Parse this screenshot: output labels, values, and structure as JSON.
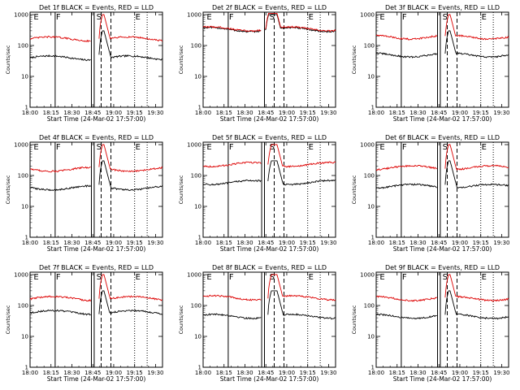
{
  "figure": {
    "common_xlabel": "Start Time (24-Mar-02 17:57:00)",
    "common_ylabel": "Counts/sec",
    "x_tick_labels": [
      "18:00",
      "18:15",
      "18:30",
      "18:45",
      "19:00",
      "19:15",
      "19:30"
    ],
    "y_tick_labels": [
      "1",
      "10",
      "100",
      "1000"
    ],
    "marker_labels": [
      "E",
      "F",
      "S",
      "E"
    ],
    "series_colors": {
      "events": "#000000",
      "lld": "#dd0000"
    }
  },
  "chart_data": [
    {
      "type": "line",
      "title": "Det 1f BLACK = Events, RED = LLD",
      "xlabel": "Start Time (24-Mar-02 17:57:00)",
      "ylabel": "Counts/sec",
      "xlim_minutes_after_18_00": [
        0,
        95
      ],
      "ylim": [
        1,
        1200
      ],
      "yscale": "log",
      "markers_minutes_after_18_00": {
        "E": 2,
        "F": 18,
        "S": 47,
        "E2": 75
      },
      "vertical_lines_minutes": {
        "solid": [
          18,
          44,
          46
        ],
        "dashed": [
          51,
          58
        ],
        "dotted": [
          75,
          84
        ]
      },
      "series": [
        {
          "name": "Events",
          "color": "#000000",
          "level": 40,
          "flare_peak": 300,
          "gap": [
            44,
            49
          ]
        },
        {
          "name": "LLD",
          "color": "#dd0000",
          "level": 165,
          "flare_peak": 1000,
          "gap": [
            44,
            49
          ]
        }
      ]
    },
    {
      "type": "line",
      "title": "Det 2f BLACK = Events, RED = LLD",
      "xlabel": "Start Time (24-Mar-02 17:57:00)",
      "ylabel": "Counts/sec",
      "xlim_minutes_after_18_00": [
        0,
        95
      ],
      "ylim": [
        1,
        1200
      ],
      "yscale": "log",
      "markers_minutes_after_18_00": {
        "E": 2,
        "F": 18,
        "S": 47,
        "E2": 75
      },
      "vertical_lines_minutes": {
        "solid": [
          18,
          44
        ],
        "dashed": [
          51,
          58
        ],
        "dotted": [
          75,
          84
        ]
      },
      "series": [
        {
          "name": "Events",
          "color": "#000000",
          "level": 330,
          "flare_peak": 1000,
          "gap": [
            42,
            44
          ]
        },
        {
          "name": "LLD",
          "color": "#dd0000",
          "level": 350,
          "flare_peak": 1100,
          "gap": [
            42,
            44
          ]
        }
      ]
    },
    {
      "type": "line",
      "title": "Det 3f BLACK = Events, RED = LLD",
      "xlabel": "Start Time (24-Mar-02 17:57:00)",
      "ylabel": "Counts/sec",
      "xlim_minutes_after_18_00": [
        0,
        95
      ],
      "ylim": [
        1,
        1200
      ],
      "yscale": "log",
      "markers_minutes_after_18_00": {
        "E": 2,
        "F": 18,
        "S": 47,
        "E2": 75
      },
      "vertical_lines_minutes": {
        "solid": [
          18,
          44,
          46
        ],
        "dashed": [
          51,
          58
        ],
        "dotted": [
          75,
          84
        ]
      },
      "series": [
        {
          "name": "Events",
          "color": "#000000",
          "level": 50,
          "flare_peak": 300,
          "gap": [
            44,
            49
          ]
        },
        {
          "name": "LLD",
          "color": "#dd0000",
          "level": 190,
          "flare_peak": 1000,
          "gap": [
            44,
            49
          ]
        }
      ]
    },
    {
      "type": "line",
      "title": "Det 4f BLACK = Events, RED = LLD",
      "xlabel": "Start Time (24-Mar-02 17:57:00)",
      "ylabel": "Counts/sec",
      "xlim_minutes_after_18_00": [
        0,
        95
      ],
      "ylim": [
        1,
        1200
      ],
      "yscale": "log",
      "markers_minutes_after_18_00": {
        "E": 2,
        "F": 18,
        "S": 47,
        "E2": 75
      },
      "vertical_lines_minutes": {
        "solid": [
          18,
          44,
          46
        ],
        "dashed": [
          51,
          58
        ],
        "dotted": [
          75,
          84
        ]
      },
      "series": [
        {
          "name": "Events",
          "color": "#000000",
          "level": 40,
          "flare_peak": 300,
          "gap": [
            44,
            49
          ]
        },
        {
          "name": "LLD",
          "color": "#dd0000",
          "level": 160,
          "flare_peak": 1000,
          "gap": [
            44,
            49
          ]
        }
      ]
    },
    {
      "type": "line",
      "title": "Det 5f BLACK = Events, RED = LLD",
      "xlabel": "Start Time (24-Mar-02 17:57:00)",
      "ylabel": "Counts/sec",
      "xlim_minutes_after_18_00": [
        0,
        95
      ],
      "ylim": [
        1,
        1200
      ],
      "yscale": "log",
      "markers_minutes_after_18_00": {
        "E": 2,
        "F": 18,
        "S": 47,
        "E2": 75
      },
      "vertical_lines_minutes": {
        "solid": [
          18,
          42,
          44
        ],
        "dashed": [
          51,
          58
        ],
        "dotted": [
          75,
          84
        ]
      },
      "series": [
        {
          "name": "Events",
          "color": "#000000",
          "level": 60,
          "flare_peak": 300,
          "gap": [
            42,
            46
          ]
        },
        {
          "name": "LLD",
          "color": "#dd0000",
          "level": 230,
          "flare_peak": 1000,
          "gap": [
            42,
            46
          ]
        }
      ]
    },
    {
      "type": "line",
      "title": "Det 6f BLACK = Events, RED = LLD",
      "xlabel": "Start Time (24-Mar-02 17:57:00)",
      "ylabel": "Counts/sec",
      "xlim_minutes_after_18_00": [
        0,
        95
      ],
      "ylim": [
        1,
        1200
      ],
      "yscale": "log",
      "markers_minutes_after_18_00": {
        "E": 2,
        "F": 18,
        "S": 47,
        "E2": 75
      },
      "vertical_lines_minutes": {
        "solid": [
          18,
          44,
          46
        ],
        "dashed": [
          51,
          58
        ],
        "dotted": [
          75,
          84
        ]
      },
      "series": [
        {
          "name": "Events",
          "color": "#000000",
          "level": 45,
          "flare_peak": 300,
          "gap": [
            44,
            49
          ]
        },
        {
          "name": "LLD",
          "color": "#dd0000",
          "level": 180,
          "flare_peak": 1000,
          "gap": [
            44,
            49
          ]
        }
      ]
    },
    {
      "type": "line",
      "title": "Det 7f BLACK = Events, RED = LLD",
      "xlabel": "Start Time (24-Mar-02 17:57:00)",
      "ylabel": "Counts/sec",
      "xlim_minutes_after_18_00": [
        0,
        95
      ],
      "ylim": [
        1,
        1200
      ],
      "yscale": "log",
      "markers_minutes_after_18_00": {
        "E": 2,
        "F": 18,
        "S": 47,
        "E2": 75
      },
      "vertical_lines_minutes": {
        "solid": [
          18,
          44,
          46
        ],
        "dashed": [
          51,
          58
        ],
        "dotted": [
          75,
          84
        ]
      },
      "series": [
        {
          "name": "Events",
          "color": "#000000",
          "level": 60,
          "flare_peak": 300,
          "gap": [
            44,
            49
          ]
        },
        {
          "name": "LLD",
          "color": "#dd0000",
          "level": 170,
          "flare_peak": 1000,
          "gap": [
            44,
            49
          ]
        }
      ]
    },
    {
      "type": "line",
      "title": "Det 8f BLACK = Events, RED = LLD",
      "xlabel": "Start Time (24-Mar-02 17:57:00)",
      "ylabel": "Counts/sec",
      "xlim_minutes_after_18_00": [
        0,
        95
      ],
      "ylim": [
        1,
        1200
      ],
      "yscale": "log",
      "markers_minutes_after_18_00": {
        "E": 2,
        "F": 18,
        "S": 47,
        "E2": 75
      },
      "vertical_lines_minutes": {
        "solid": [
          18,
          42,
          44
        ],
        "dashed": [
          51,
          58
        ],
        "dotted": [
          75,
          84
        ]
      },
      "series": [
        {
          "name": "Events",
          "color": "#000000",
          "level": 45,
          "flare_peak": 300,
          "gap": [
            42,
            46
          ]
        },
        {
          "name": "LLD",
          "color": "#dd0000",
          "level": 180,
          "flare_peak": 1000,
          "gap": [
            42,
            46
          ]
        }
      ]
    },
    {
      "type": "line",
      "title": "Det 9f BLACK = Events, RED = LLD",
      "xlabel": "Start Time (24-Mar-02 17:57:00)",
      "ylabel": "Counts/sec",
      "xlim_minutes_after_18_00": [
        0,
        95
      ],
      "ylim": [
        1,
        1200
      ],
      "yscale": "log",
      "markers_minutes_after_18_00": {
        "E": 2,
        "F": 18,
        "S": 47,
        "E2": 75
      },
      "vertical_lines_minutes": {
        "solid": [
          18,
          44,
          46
        ],
        "dashed": [
          51,
          58
        ],
        "dotted": [
          75,
          84
        ]
      },
      "series": [
        {
          "name": "Events",
          "color": "#000000",
          "level": 45,
          "flare_peak": 300,
          "gap": [
            44,
            49
          ]
        },
        {
          "name": "LLD",
          "color": "#dd0000",
          "level": 170,
          "flare_peak": 1000,
          "gap": [
            44,
            49
          ]
        }
      ]
    }
  ]
}
